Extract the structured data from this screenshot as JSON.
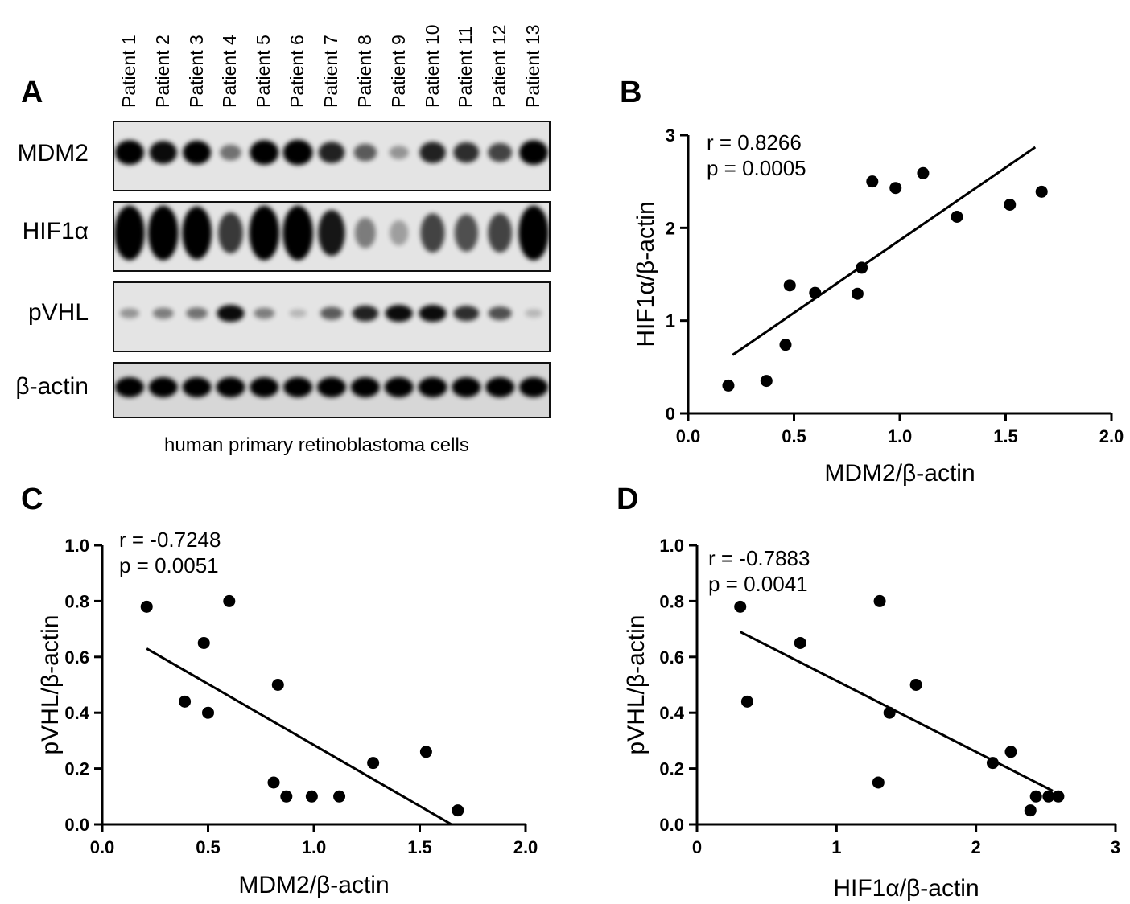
{
  "panel_a": {
    "letter": "A",
    "lanes": [
      "Patient 1",
      "Patient 2",
      "Patient 3",
      "Patient 4",
      "Patient 5",
      "Patient 6",
      "Patient 7",
      "Patient 8",
      "Patient 9",
      "Patient 10",
      "Patient 11",
      "Patient 12",
      "Patient 13"
    ],
    "blots": [
      {
        "label": "MDM2",
        "intensity": [
          0.9,
          0.8,
          0.85,
          0.35,
          0.9,
          0.95,
          0.7,
          0.45,
          0.2,
          0.7,
          0.65,
          0.55,
          0.9
        ],
        "thickness": 0.35
      },
      {
        "label": "HIF1α",
        "intensity": [
          1.0,
          1.0,
          0.95,
          0.6,
          1.0,
          1.0,
          0.75,
          0.3,
          0.15,
          0.55,
          0.5,
          0.55,
          1.0
        ],
        "thickness": 0.75
      },
      {
        "label": "pVHL",
        "intensity": [
          0.2,
          0.3,
          0.35,
          0.8,
          0.3,
          0.05,
          0.45,
          0.7,
          0.8,
          0.8,
          0.65,
          0.5,
          0.05
        ],
        "thickness": 0.25
      },
      {
        "label": "β-actin",
        "intensity": [
          0.9,
          0.9,
          0.9,
          0.9,
          0.9,
          0.9,
          0.9,
          0.9,
          0.9,
          0.9,
          0.9,
          0.9,
          0.9
        ],
        "thickness": 0.35
      }
    ],
    "caption": "human primary retinoblastoma cells"
  },
  "chart_data": [
    {
      "panel": "B",
      "type": "scatter",
      "xlabel": "MDM2/β-actin",
      "ylabel": "HIF1α/β-actin",
      "xlim": [
        0,
        2.0
      ],
      "ylim": [
        0,
        3
      ],
      "xticks": [
        "0.0",
        "0.5",
        "1.0",
        "1.5",
        "2.0"
      ],
      "yticks": [
        "0",
        "1",
        "2",
        "3"
      ],
      "annotation": [
        "r = 0.8266",
        "p = 0.0005"
      ],
      "points": [
        [
          0.19,
          0.3
        ],
        [
          0.37,
          0.35
        ],
        [
          0.46,
          0.74
        ],
        [
          0.48,
          1.38
        ],
        [
          0.6,
          1.3
        ],
        [
          0.8,
          1.29
        ],
        [
          0.82,
          1.57
        ],
        [
          0.87,
          2.5
        ],
        [
          0.98,
          2.43
        ],
        [
          1.11,
          2.59
        ],
        [
          1.27,
          2.12
        ],
        [
          1.52,
          2.25
        ],
        [
          1.67,
          2.39
        ]
      ],
      "fit_line": [
        [
          0.21,
          0.63
        ],
        [
          1.64,
          2.87
        ]
      ]
    },
    {
      "panel": "C",
      "type": "scatter",
      "xlabel": "MDM2/β-actin",
      "ylabel": "pVHL/β-actin",
      "xlim": [
        0,
        2.0
      ],
      "ylim": [
        0,
        1.0
      ],
      "xticks": [
        "0.0",
        "0.5",
        "1.0",
        "1.5",
        "2.0"
      ],
      "yticks": [
        "0.0",
        "0.2",
        "0.4",
        "0.6",
        "0.8",
        "1.0"
      ],
      "annotation": [
        "r = -0.7248",
        "p = 0.0051"
      ],
      "points": [
        [
          0.21,
          0.78
        ],
        [
          0.39,
          0.44
        ],
        [
          0.48,
          0.65
        ],
        [
          0.5,
          0.4
        ],
        [
          0.6,
          0.8
        ],
        [
          0.81,
          0.15
        ],
        [
          0.83,
          0.5
        ],
        [
          0.87,
          0.1
        ],
        [
          0.99,
          0.1
        ],
        [
          1.12,
          0.1
        ],
        [
          1.28,
          0.22
        ],
        [
          1.53,
          0.26
        ],
        [
          1.68,
          0.05
        ]
      ],
      "fit_line": [
        [
          0.21,
          0.63
        ],
        [
          1.65,
          0.0
        ]
      ]
    },
    {
      "panel": "D",
      "type": "scatter",
      "xlabel": "HIF1α/β-actin",
      "ylabel": "pVHL/β-actin",
      "xlim": [
        0,
        3
      ],
      "ylim": [
        0,
        1.0
      ],
      "xticks": [
        "0",
        "1",
        "2",
        "3"
      ],
      "yticks": [
        "0.0",
        "0.2",
        "0.4",
        "0.6",
        "0.8",
        "1.0"
      ],
      "annotation": [
        "r = -0.7883",
        "p = 0.0041"
      ],
      "points": [
        [
          0.31,
          0.78
        ],
        [
          0.36,
          0.44
        ],
        [
          0.74,
          0.65
        ],
        [
          1.3,
          0.15
        ],
        [
          1.31,
          0.8
        ],
        [
          1.38,
          0.4
        ],
        [
          1.57,
          0.5
        ],
        [
          2.12,
          0.22
        ],
        [
          2.25,
          0.26
        ],
        [
          2.39,
          0.05
        ],
        [
          2.43,
          0.1
        ],
        [
          2.52,
          0.1
        ],
        [
          2.59,
          0.1
        ]
      ],
      "fit_line": [
        [
          0.31,
          0.69
        ],
        [
          2.55,
          0.12
        ]
      ]
    }
  ]
}
